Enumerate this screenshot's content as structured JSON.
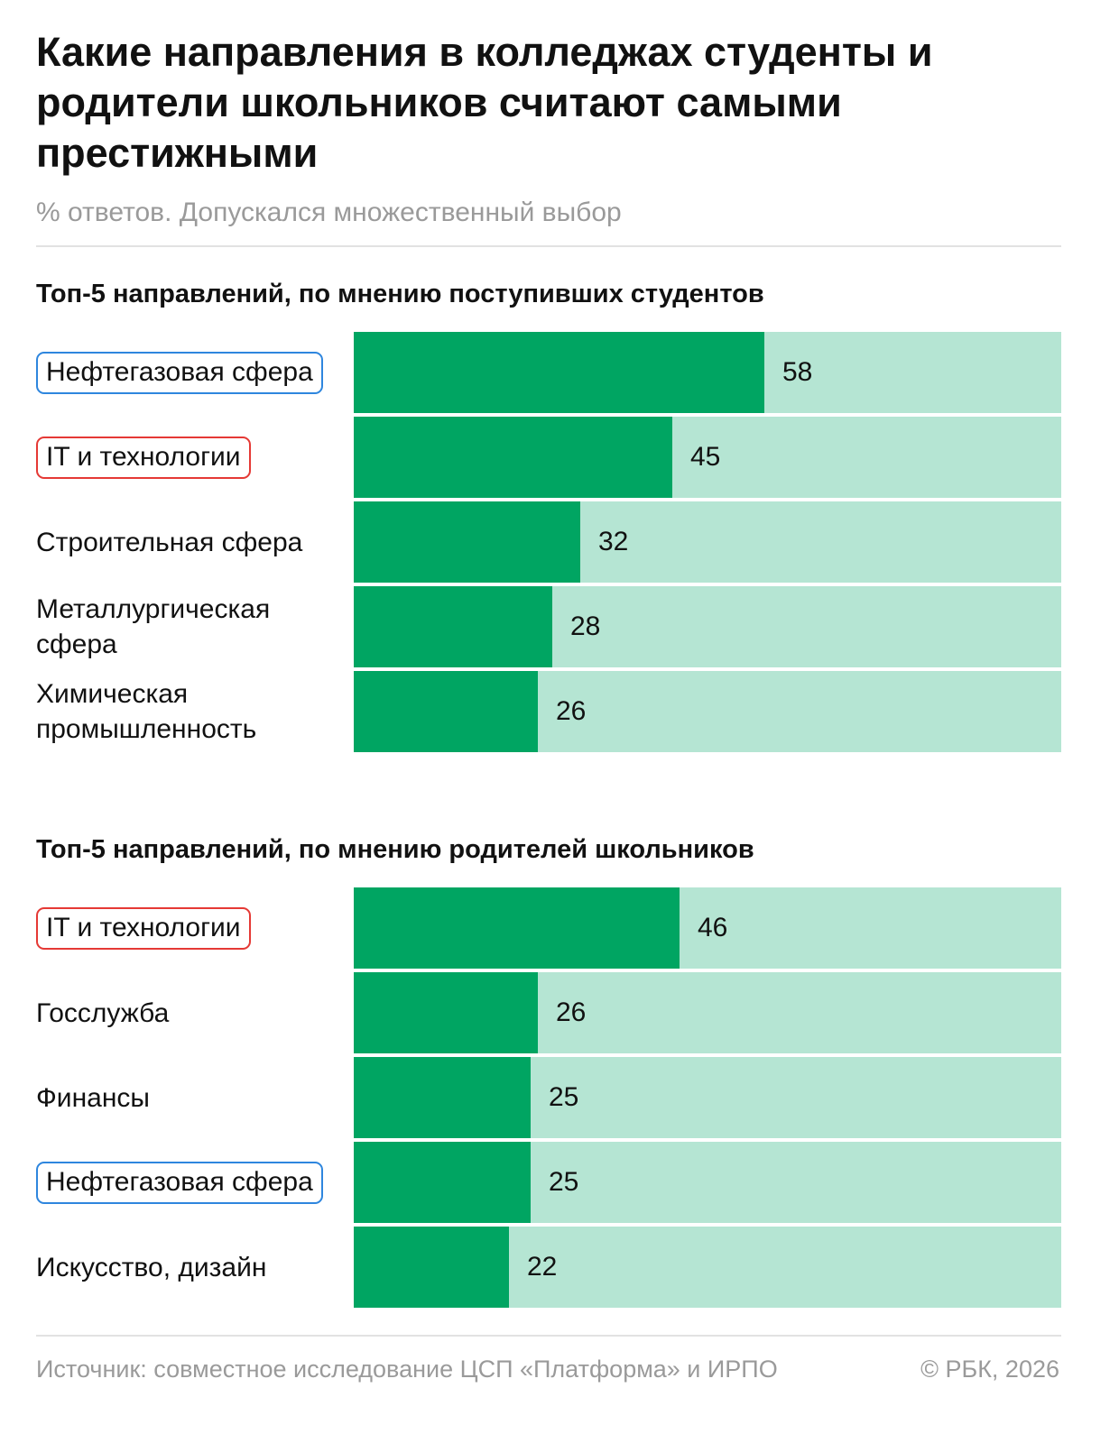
{
  "title": "Какие направления в колледжах студенты и родители школьников считают самыми престижными",
  "subtitle": "% ответов. Допускался множественный выбор",
  "colors": {
    "bar_fill": "#00a562",
    "bar_track": "#b5e5d3",
    "highlight_oil": "#2e86de",
    "highlight_it": "#e53935"
  },
  "chart_data": [
    {
      "type": "bar",
      "title": "Топ-5 направлений, по мнению поступивших студентов",
      "xlim": [
        0,
        100
      ],
      "categories": [
        "Нефтегазовая сфера",
        "IT и технологии",
        "Строительная сфера",
        "Металлургическая сфера",
        "Химическая промышленность"
      ],
      "values": [
        58,
        45,
        32,
        28,
        26
      ],
      "highlights": [
        "oil",
        "it",
        "",
        "",
        ""
      ]
    },
    {
      "type": "bar",
      "title": "Топ-5 направлений, по мнению родителей школьников",
      "xlim": [
        0,
        100
      ],
      "categories": [
        "IT и технологии",
        "Госслужба",
        "Финансы",
        "Нефтегазовая сфера",
        "Искусство, дизайн"
      ],
      "values": [
        46,
        26,
        25,
        25,
        22
      ],
      "highlights": [
        "it",
        "",
        "",
        "oil",
        ""
      ]
    }
  ],
  "footer": {
    "source": "Источник: совместное исследование ЦСП «Платформа» и ИРПО",
    "copyright": "© РБК, 2026"
  }
}
